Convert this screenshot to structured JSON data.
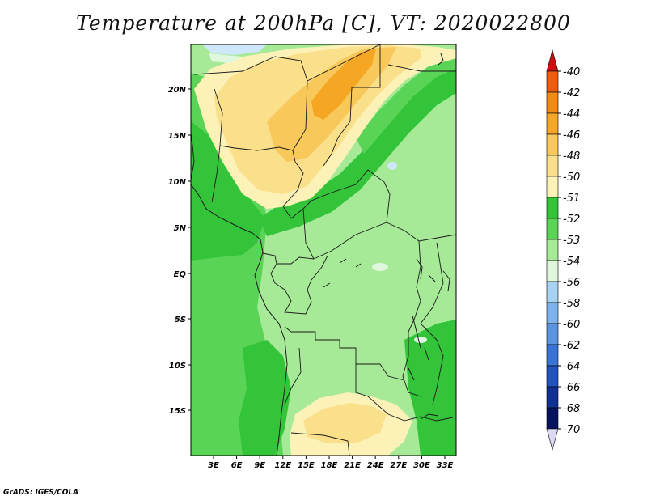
{
  "title": "Temperature at 200hPa [C], VT: 2020022800",
  "credit": "GrADS: IGES/COLA",
  "map": {
    "lat_labels": [
      "20N",
      "15N",
      "10N",
      "5N",
      "EQ",
      "5S",
      "10S",
      "15S"
    ],
    "lon_labels": [
      "3E",
      "6E",
      "9E",
      "12E",
      "15E",
      "18E",
      "21E",
      "24E",
      "27E",
      "30E",
      "33E"
    ]
  },
  "colorbar": {
    "labels": [
      "-40",
      "-42",
      "-44",
      "-46",
      "-48",
      "-50",
      "-51",
      "-52",
      "-53",
      "-54",
      "-56",
      "-58",
      "-60",
      "-62",
      "-64",
      "-66",
      "-68",
      "-70"
    ],
    "colors": [
      "#e8241a",
      "#f25a0c",
      "#f58a10",
      "#f5a623",
      "#f8c85a",
      "#fbe08c",
      "#fcf2b8",
      "#33c43a",
      "#5ad456",
      "#a6ea98",
      "#dff7dd",
      "#a8d2f2",
      "#7db3ea",
      "#5b94e0",
      "#3b72d5",
      "#2352c3",
      "#113094",
      "#08135e"
    ],
    "top_color": "#cc1010",
    "bottom_color": "#dcd9f2"
  },
  "palette": {
    "warm_deep": "#f5a623",
    "warm_mid": "#f8c85a",
    "warm_light": "#fbe08c",
    "warm_pale": "#fcf2b8",
    "green_dark": "#33c43a",
    "green_mid": "#5ad456",
    "green_light": "#a6ea98",
    "green_pale": "#dff7dd",
    "blue_pale": "#cfe7fb"
  }
}
